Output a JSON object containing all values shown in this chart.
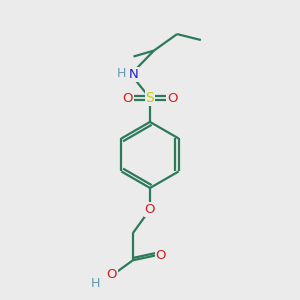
{
  "bg_color": "#ebebeb",
  "bond_color": "#2d7a5a",
  "N_color": "#2020cc",
  "S_color": "#cccc00",
  "O_color": "#cc2020",
  "H_color": "#6699aa",
  "lw": 1.6,
  "figsize": [
    3.0,
    3.0
  ],
  "dpi": 100,
  "xlim": [
    1.5,
    8.5
  ],
  "ylim": [
    0.5,
    9.5
  ]
}
